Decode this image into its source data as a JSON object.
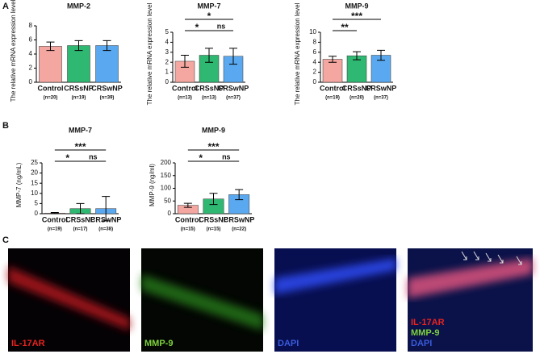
{
  "figure": {
    "panel_labels": [
      "A",
      "B",
      "C"
    ]
  },
  "chart_data": [
    {
      "type": "bar",
      "title": "MMP-2",
      "ylabel": "The relative mRNA expression level",
      "categories": [
        "Control",
        "CRSsNP",
        "CRSwNP"
      ],
      "n_labels": [
        "(n=20)",
        "(n=19)",
        "(n=39)"
      ],
      "values": [
        5.1,
        5.2,
        5.2
      ],
      "errors": [
        0.6,
        0.7,
        0.7
      ],
      "colors": [
        "#f4a6a0",
        "#2fb872",
        "#5aa9f0"
      ],
      "ylim": [
        0,
        8
      ],
      "yticks": [
        0,
        2,
        4,
        6,
        8
      ],
      "significance": []
    },
    {
      "type": "bar",
      "title": "MMP-7",
      "ylabel": "The relative mRNA expression level",
      "categories": [
        "Control",
        "CRSsNP",
        "CRSwNP"
      ],
      "n_labels": [
        "(n=13)",
        "(n=13)",
        "(n=37)"
      ],
      "values": [
        2.1,
        2.7,
        2.6
      ],
      "errors": [
        0.6,
        0.7,
        0.8
      ],
      "colors": [
        "#f4a6a0",
        "#2fb872",
        "#5aa9f0"
      ],
      "ylim": [
        0,
        5
      ],
      "yticks": [
        0,
        1,
        2,
        3,
        4,
        5
      ],
      "significance": [
        {
          "label": "*",
          "groups": [
            "Control",
            "CRSsNP"
          ]
        },
        {
          "label": "ns",
          "groups": [
            "CRSsNP",
            "CRSwNP"
          ]
        },
        {
          "label": "*",
          "groups": [
            "Control",
            "CRSwNP"
          ]
        }
      ]
    },
    {
      "type": "bar",
      "title": "MMP-9",
      "ylabel": "The relative mRNA expression level",
      "categories": [
        "Control",
        "CRSsNP",
        "CRSwNP"
      ],
      "n_labels": [
        "(n=19)",
        "(n=20)",
        "(n=37)"
      ],
      "values": [
        4.6,
        5.3,
        5.4
      ],
      "errors": [
        0.6,
        0.8,
        1.0
      ],
      "colors": [
        "#f4a6a0",
        "#2fb872",
        "#5aa9f0"
      ],
      "ylim": [
        0,
        10
      ],
      "yticks": [
        0,
        2,
        4,
        6,
        8,
        10
      ],
      "significance": [
        {
          "label": "**",
          "groups": [
            "Control",
            "CRSsNP"
          ]
        },
        {
          "label": "***",
          "groups": [
            "Control",
            "CRSwNP"
          ]
        }
      ]
    },
    {
      "type": "bar",
      "title": "MMP-7",
      "ylabel": "MMP-7 (ng/mL)",
      "categories": [
        "Control",
        "CRSsNP",
        "CRSwNP"
      ],
      "n_labels": [
        "(n=19)",
        "(n=17)",
        "(n=38)"
      ],
      "values": [
        0.3,
        2.5,
        2.5
      ],
      "errors": [
        0.3,
        2.5,
        6
      ],
      "colors": [
        "#f4a6a0",
        "#2fb872",
        "#5aa9f0"
      ],
      "ylim": [
        0,
        25
      ],
      "yticks": [
        0,
        5,
        10,
        15,
        20,
        25
      ],
      "significance": [
        {
          "label": "*",
          "groups": [
            "Control",
            "CRSsNP"
          ]
        },
        {
          "label": "ns",
          "groups": [
            "CRSsNP",
            "CRSwNP"
          ]
        },
        {
          "label": "***",
          "groups": [
            "Control",
            "CRSwNP"
          ]
        }
      ]
    },
    {
      "type": "bar",
      "title": "MMP-9",
      "ylabel": "MMP-9 (ng/ml)",
      "categories": [
        "Control",
        "CRSsNP",
        "CRSwNP"
      ],
      "n_labels": [
        "(n=15)",
        "(n=15)",
        "(n=22)"
      ],
      "values": [
        33,
        58,
        75
      ],
      "errors": [
        8,
        22,
        20
      ],
      "colors": [
        "#f4a6a0",
        "#2fb872",
        "#5aa9f0"
      ],
      "ylim": [
        0,
        200
      ],
      "yticks": [
        0,
        50,
        100,
        150,
        200
      ],
      "significance": [
        {
          "label": "*",
          "groups": [
            "Control",
            "CRSsNP"
          ]
        },
        {
          "label": "ns",
          "groups": [
            "CRSsNP",
            "CRSwNP"
          ]
        },
        {
          "label": "***",
          "groups": [
            "Control",
            "CRSwNP"
          ]
        }
      ]
    }
  ],
  "images": [
    {
      "labels": [
        {
          "text": "IL-17AR",
          "color": "#e8231f"
        }
      ]
    },
    {
      "labels": [
        {
          "text": "MMP-9",
          "color": "#7ed23c"
        }
      ]
    },
    {
      "labels": [
        {
          "text": "DAPI",
          "color": "#3b5bdb"
        }
      ]
    },
    {
      "labels": [
        {
          "text": "IL-17AR",
          "color": "#e8231f"
        },
        {
          "text": "MMP-9",
          "color": "#7ed23c"
        },
        {
          "text": "DAPI",
          "color": "#3b5bdb"
        }
      ]
    }
  ]
}
